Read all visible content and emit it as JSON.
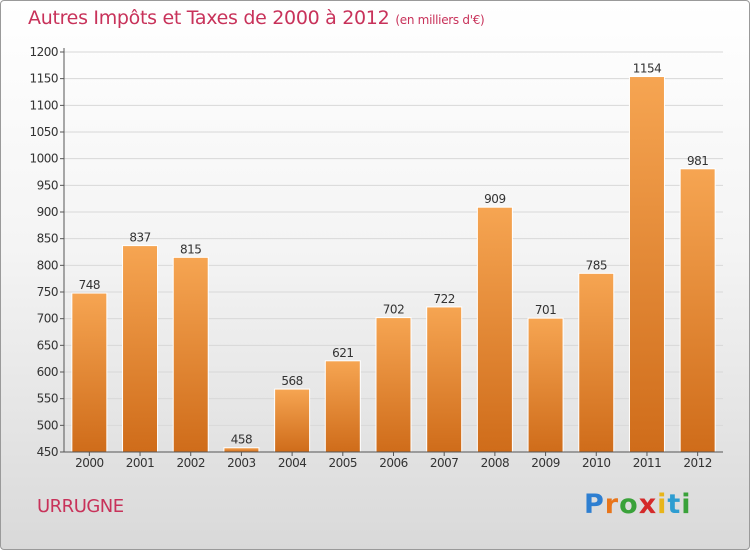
{
  "title": "Autres Impôts et Taxes de 2000 à 2012",
  "title_unit": "(en milliers d'€)",
  "commune": "URRUGNE",
  "logo": {
    "letters": [
      "P",
      "r",
      "o",
      "x",
      "i",
      "t",
      "i"
    ],
    "colors": [
      "#2e7fd1",
      "#e8751a",
      "#3aa23a",
      "#d42a2a",
      "#e8b51a",
      "#2e9dd1",
      "#3aa23a"
    ]
  },
  "colors": {
    "bar_top": "#f6a552",
    "bar_bottom": "#cf6c1a",
    "title": "#c8325a"
  },
  "chart_data": {
    "type": "bar",
    "title": "Autres Impôts et Taxes de 2000 à 2012",
    "subtitle": "(en milliers d'€)",
    "xlabel": "",
    "ylabel": "",
    "categories": [
      "2000",
      "2001",
      "2002",
      "2003",
      "2004",
      "2005",
      "2006",
      "2007",
      "2008",
      "2009",
      "2010",
      "2011",
      "2012"
    ],
    "values": [
      748,
      837,
      815,
      458,
      568,
      621,
      702,
      722,
      909,
      701,
      785,
      1154,
      981
    ],
    "ylim": [
      450,
      1200
    ],
    "yticks": [
      450,
      500,
      550,
      600,
      650,
      700,
      750,
      800,
      850,
      900,
      950,
      1000,
      1050,
      1100,
      1150,
      1200
    ],
    "grid": true
  }
}
